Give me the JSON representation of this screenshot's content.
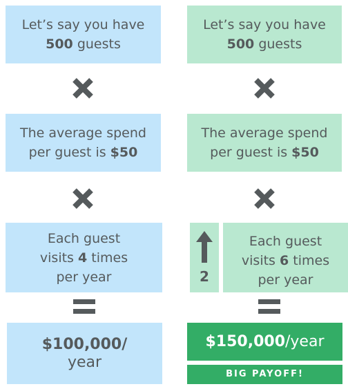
{
  "left": {
    "guests": {
      "pre": "Let’s say you have",
      "num": "500",
      "post": "guests"
    },
    "spend": {
      "line1": "The average spend",
      "pre": "per guest is",
      "num": "$50"
    },
    "visits": {
      "line1": "Each guest",
      "pre": "visits",
      "num": "4",
      "post": "times",
      "line3": "per year"
    },
    "result": {
      "amount": "$100,000",
      "slash": "/",
      "unit": "year"
    }
  },
  "right": {
    "guests": {
      "pre": "Let’s say you have",
      "num": "500",
      "post": "guests"
    },
    "spend": {
      "line1": "The average spend",
      "pre": "per guest is",
      "num": "$50"
    },
    "increase": "2",
    "visits": {
      "line1": "Each guest",
      "pre": "visits",
      "num": "6",
      "post": "times",
      "line3": "per year"
    },
    "result": {
      "amount": "$150,000",
      "unit": "/year"
    },
    "payoff": "BIG PAYOFF!"
  },
  "icons": {
    "multiply": "multiply-icon",
    "equals": "equals-icon",
    "arrow": "arrow-up-icon"
  },
  "colors": {
    "blue": "#c2e5fb",
    "mint": "#b9e8d0",
    "green": "#33ad66",
    "text": "#555a5c"
  }
}
